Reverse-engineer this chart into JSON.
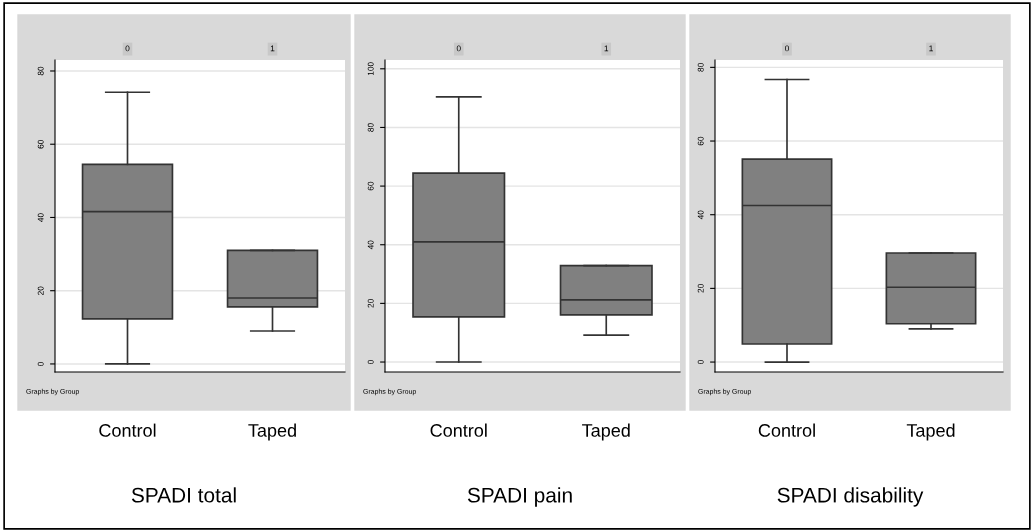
{
  "chart_data": [
    {
      "type": "box",
      "title": "SPADI total",
      "categories": [
        "Control",
        "Taped"
      ],
      "color": "#808080",
      "boxes": [
        {
          "low": 0,
          "q1": 12.3,
          "median": 41.6,
          "q3": 54.5,
          "high": 74.2
        },
        {
          "low": 9.0,
          "q1": 15.6,
          "median": 18,
          "q3": 31,
          "high": 31
        }
      ],
      "ylim": [
        -2.2,
        83
      ],
      "yticks": [
        0,
        20,
        40,
        60,
        80
      ],
      "grid": "y",
      "annotations": [
        "0",
        "1",
        "Graphs by Group"
      ]
    },
    {
      "type": "box",
      "title": "SPADI pain",
      "categories": [
        "Control",
        "Taped"
      ],
      "color": "#808080",
      "boxes": [
        {
          "low": 0,
          "q1": 15.4,
          "median": 41,
          "q3": 64.4,
          "high": 90.4
        },
        {
          "low": 9.2,
          "q1": 16.1,
          "median": 21.2,
          "q3": 32.9,
          "high": 32.9
        }
      ],
      "ylim": [
        -3.4,
        103
      ],
      "yticks": [
        0,
        20,
        40,
        60,
        80,
        100
      ],
      "grid": "y",
      "annotations": [
        "0",
        "1",
        "Graphs by Group"
      ]
    },
    {
      "type": "box",
      "title": "SPADI disability",
      "categories": [
        "Control",
        "Taped"
      ],
      "color": "#808080",
      "boxes": [
        {
          "low": 0,
          "q1": 4.9,
          "median": 42.5,
          "q3": 55.1,
          "high": 76.7
        },
        {
          "low": 9.0,
          "q1": 10.4,
          "median": 20.3,
          "q3": 29.6,
          "high": 29.6
        }
      ],
      "ylim": [
        -2.7,
        82
      ],
      "yticks": [
        0,
        20,
        40,
        60,
        80
      ],
      "grid": "y",
      "annotations": [
        "0",
        "1",
        "Graphs by Group"
      ]
    }
  ]
}
